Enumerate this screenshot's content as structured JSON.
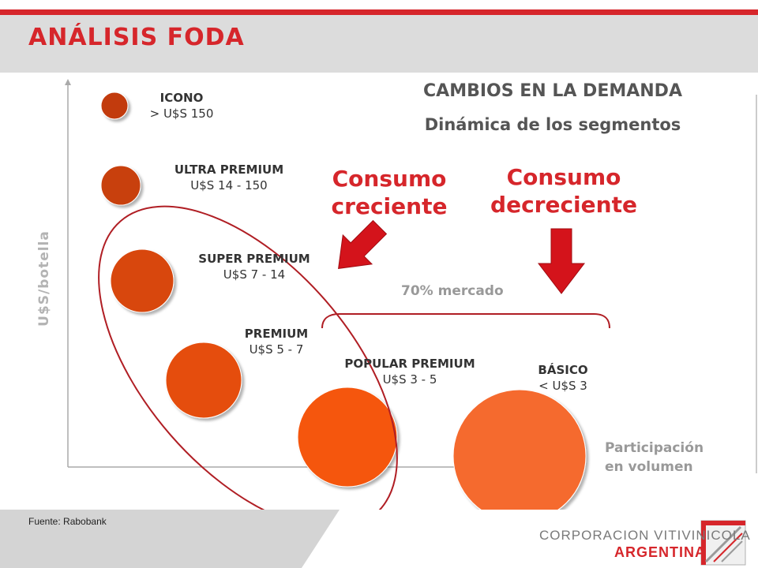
{
  "header": {
    "title": "ANÁLISIS FODA"
  },
  "demand": {
    "title": "CAMBIOS EN LA DEMANDA",
    "subtitle": "Dinámica de los segmentos"
  },
  "axes": {
    "y_label": "U$S/botella",
    "x_label_line1": "Participación",
    "x_label_line2": "en volumen"
  },
  "segments": [
    {
      "name": "ICONO",
      "price": "> U$S 150",
      "color": "#c23a0f"
    },
    {
      "name": "ULTRA PREMIUM",
      "price": "U$S 14 - 150",
      "color": "#c8400f"
    },
    {
      "name": "SUPER PREMIUM",
      "price": "U$S 7 - 14",
      "color": "#d8470f"
    },
    {
      "name": "PREMIUM",
      "price": "U$S 5 - 7",
      "color": "#e54e0d"
    },
    {
      "name": "POPULAR PREMIUM",
      "price": "U$S 3 - 5",
      "color": "#f5560c"
    },
    {
      "name": "BÁSICO",
      "price": "< U$S 3",
      "color": "#f56a2e"
    }
  ],
  "callouts": {
    "growing_line1": "Consumo",
    "growing_line2": "creciente",
    "declining_line1": "Consumo",
    "declining_line2": "decreciente"
  },
  "market_share": "70% mercado",
  "footer": {
    "source": "Fuente: Rabobank",
    "logo_line1": "CORPORACION VITIVINICOLA",
    "logo_line2": "ARGENTINA"
  },
  "colors": {
    "accent": "#d6262b",
    "ellipse": "#b01e24",
    "arrow": "#d4131b"
  }
}
